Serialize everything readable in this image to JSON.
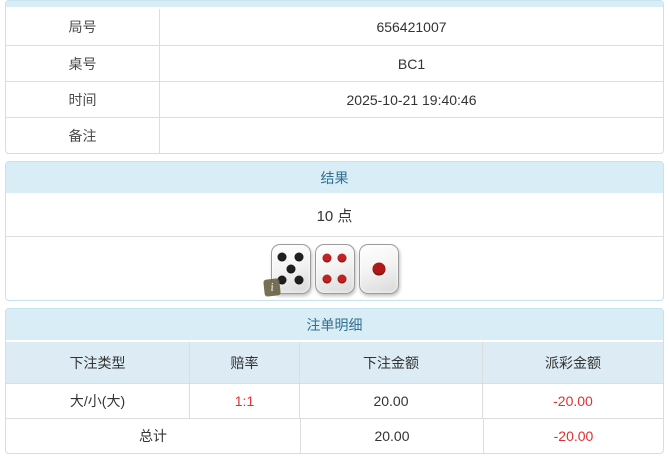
{
  "colors": {
    "accent_bg": "#d9edf7",
    "accent_text": "#31708f",
    "panel_border": "#c6e2ee",
    "row_border": "#dddddd",
    "danger_red": "#e03131",
    "badge_olive": "#6d6446"
  },
  "info_table": {
    "rows": [
      {
        "label": "局号",
        "value": "656421007"
      },
      {
        "label": "桌号",
        "value": "BC1"
      },
      {
        "label": "时间",
        "value": "2025-10-21 19:40:46"
      },
      {
        "label": "备注",
        "value": ""
      }
    ]
  },
  "result": {
    "title": "结果",
    "points": "10 点",
    "dice": [
      {
        "value": 5,
        "pip_color": "#1f1f1f",
        "badge": "i"
      },
      {
        "value": 4,
        "pip_color": "#c32222"
      },
      {
        "value": 1,
        "pip_color": "#b01818"
      }
    ]
  },
  "bets": {
    "title": "注单明细",
    "headers": [
      "下注类型",
      "赔率",
      "下注金额",
      "派彩金额"
    ],
    "rows": [
      {
        "type": "大/小(大)",
        "odds": "1:1",
        "amount": "20.00",
        "payout": "-20.00"
      }
    ],
    "total": {
      "label": "总计",
      "amount": "20.00",
      "payout": "-20.00"
    }
  }
}
